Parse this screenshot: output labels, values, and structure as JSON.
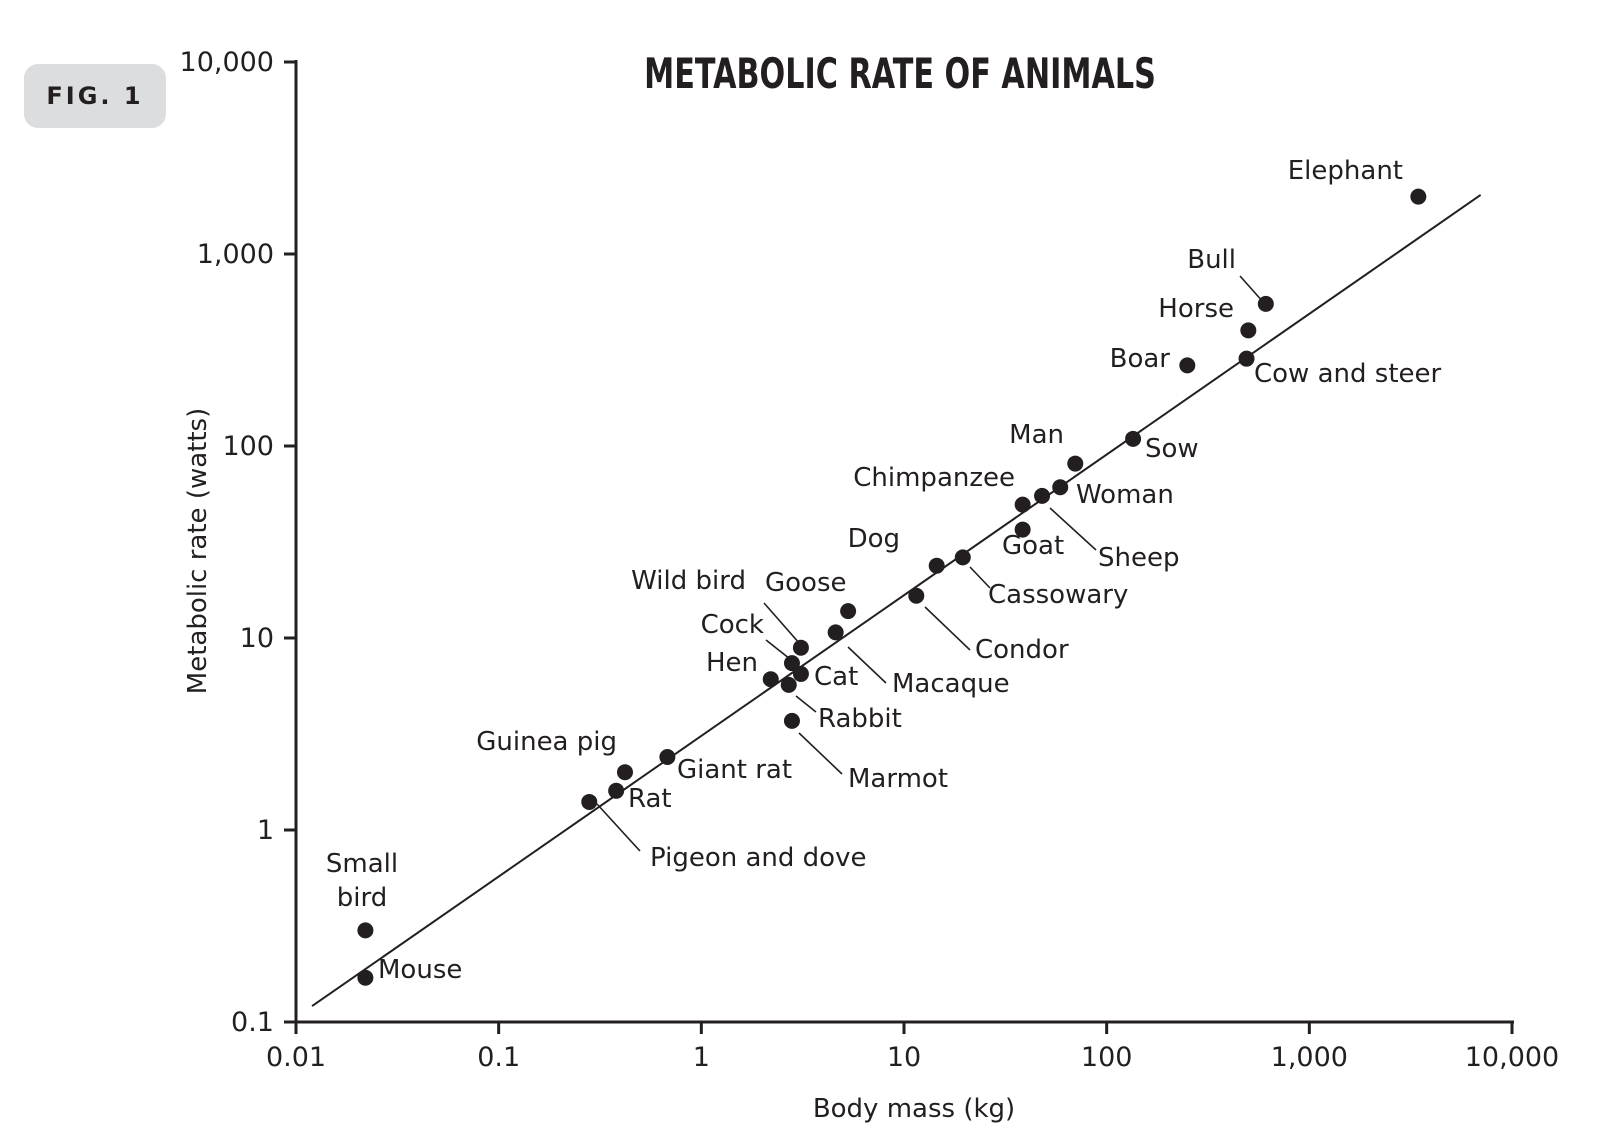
{
  "figure": {
    "badge": "FIG. 1"
  },
  "chart_data": {
    "type": "scatter",
    "title": "METABOLIC RATE OF ANIMALS",
    "xlabel": "Body mass (kg)",
    "ylabel": "Metabolic rate (watts)",
    "xscale": "log",
    "yscale": "log",
    "xlim": [
      0.01,
      10000
    ],
    "ylim": [
      0.1,
      10000
    ],
    "x_ticks": [
      0.01,
      0.1,
      1,
      10,
      100,
      1000,
      10000
    ],
    "x_tick_labels": [
      "0.01",
      "0.1",
      "1",
      "10",
      "100",
      "1,000",
      "10,000"
    ],
    "y_ticks": [
      0.1,
      1,
      10,
      100,
      1000,
      10000
    ],
    "y_tick_labels": [
      "0.1",
      "1",
      "10",
      "100",
      "1,000",
      "10,000"
    ],
    "grid": false,
    "trend_line": {
      "x": [
        0.012,
        7000
      ],
      "y": [
        0.121,
        2030
      ]
    },
    "points": [
      {
        "label": "Small bird",
        "x": 0.022,
        "y": 0.3
      },
      {
        "label": "Mouse",
        "x": 0.022,
        "y": 0.17
      },
      {
        "label": "Pigeon and dove",
        "x": 0.28,
        "y": 1.4
      },
      {
        "label": "Rat",
        "x": 0.38,
        "y": 1.6
      },
      {
        "label": "Guinea pig",
        "x": 0.42,
        "y": 2.0
      },
      {
        "label": "Giant rat",
        "x": 0.68,
        "y": 2.4
      },
      {
        "label": "Hen",
        "x": 2.2,
        "y": 6.1
      },
      {
        "label": "Rabbit",
        "x": 2.7,
        "y": 5.7
      },
      {
        "label": "Cock",
        "x": 2.8,
        "y": 7.4
      },
      {
        "label": "Marmot",
        "x": 2.8,
        "y": 3.7
      },
      {
        "label": "Wild bird",
        "x": 3.1,
        "y": 8.9
      },
      {
        "label": "Cat",
        "x": 3.1,
        "y": 6.5
      },
      {
        "label": "Macaque",
        "x": 4.6,
        "y": 10.7
      },
      {
        "label": "Goose",
        "x": 5.3,
        "y": 13.8
      },
      {
        "label": "Condor",
        "x": 11.5,
        "y": 16.6
      },
      {
        "label": "Dog",
        "x": 14.5,
        "y": 23.8
      },
      {
        "label": "Cassowary",
        "x": 19.5,
        "y": 26.3
      },
      {
        "label": "Chimpanzee",
        "x": 38.5,
        "y": 49.5
      },
      {
        "label": "Goat",
        "x": 38.5,
        "y": 36.7
      },
      {
        "label": "Sheep",
        "x": 48,
        "y": 55
      },
      {
        "label": "Woman",
        "x": 59,
        "y": 61
      },
      {
        "label": "Man",
        "x": 70,
        "y": 81
      },
      {
        "label": "Sow",
        "x": 135,
        "y": 109
      },
      {
        "label": "Boar",
        "x": 250,
        "y": 263
      },
      {
        "label": "Cow and steer",
        "x": 490,
        "y": 285
      },
      {
        "label": "Horse",
        "x": 500,
        "y": 400
      },
      {
        "label": "Bull",
        "x": 610,
        "y": 550
      },
      {
        "label": "Elephant",
        "x": 3450,
        "y": 1990
      }
    ]
  }
}
